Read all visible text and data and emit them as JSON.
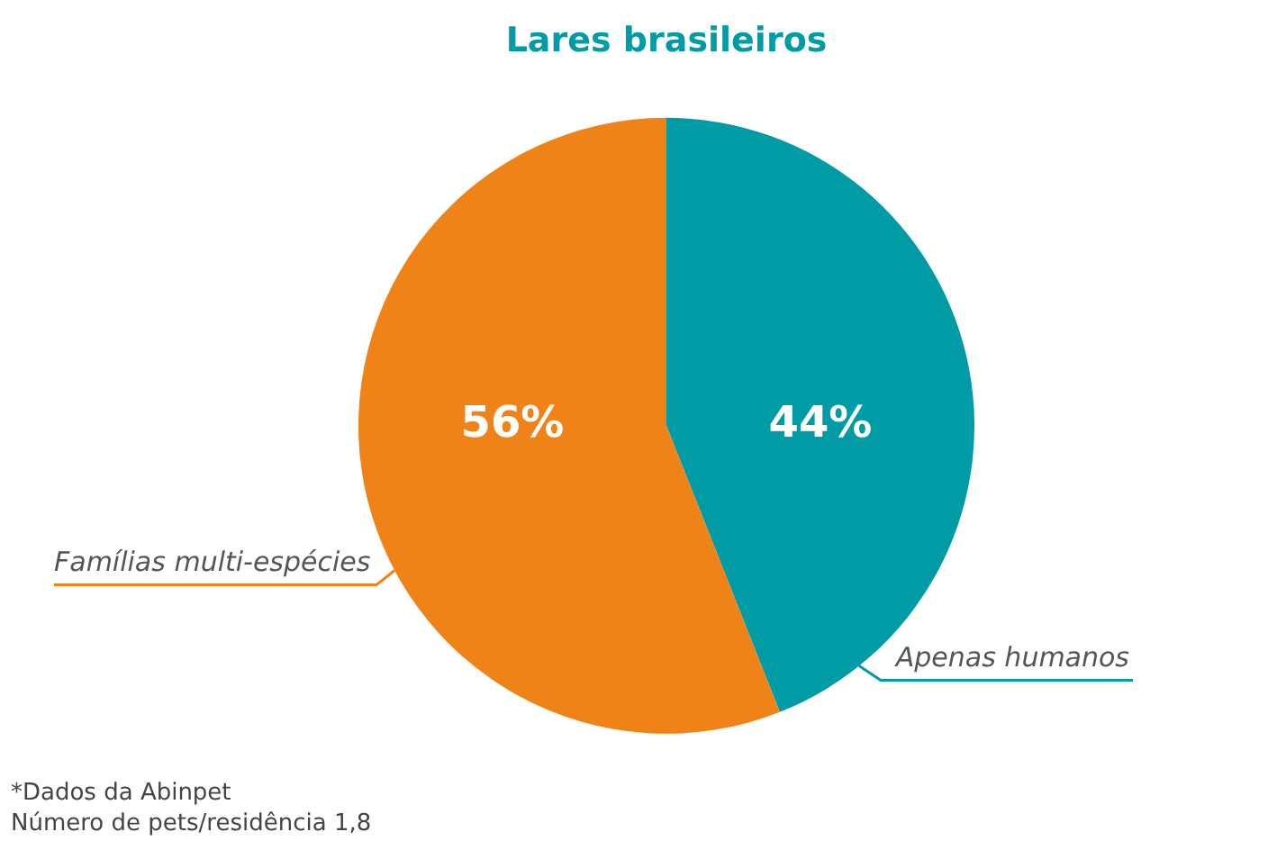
{
  "chart_data": {
    "type": "pie",
    "title": "Lares brasileiros",
    "categories": [
      "Apenas humanos",
      "Famílias multi-espécies"
    ],
    "values": [
      44,
      56
    ],
    "value_labels": [
      "44%",
      "56%"
    ],
    "colors": [
      "#009ba4",
      "#f08318"
    ],
    "legend": false,
    "annotations": [
      "*Dados da Abinpet",
      "Número de pets/residência 1,8"
    ]
  }
}
